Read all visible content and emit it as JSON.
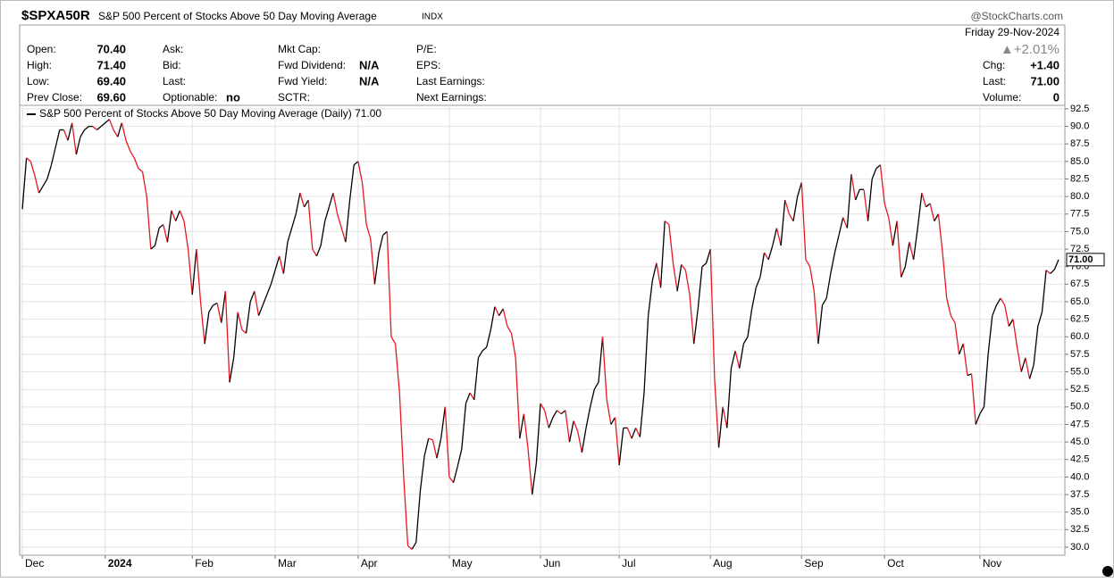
{
  "header": {
    "symbol": "$SPXA50R",
    "name": "S&P 500 Percent of Stocks Above 50 Day Moving Average",
    "exchange": "INDX",
    "brand": "@StockCharts.com",
    "date": "Friday  29-Nov-2024",
    "change_pct": "▲+2.01%"
  },
  "quote": {
    "columns": [
      [
        {
          "label": "Open:",
          "value": "70.40"
        },
        {
          "label": "High:",
          "value": "71.40"
        },
        {
          "label": "Low:",
          "value": "69.40"
        },
        {
          "label": "Prev Close:",
          "value": "69.60"
        }
      ],
      [
        {
          "label": "Ask:"
        },
        {
          "label": "Bid:"
        },
        {
          "label": "Last:"
        },
        {
          "label": "Optionable:",
          "value": "no"
        }
      ],
      [
        {
          "label": "Mkt Cap:"
        },
        {
          "label": "Fwd Dividend:",
          "value": "N/A"
        },
        {
          "label": "Fwd Yield:",
          "value": "N/A"
        },
        {
          "label": "SCTR:"
        }
      ],
      [
        {
          "label": "P/E:"
        },
        {
          "label": "EPS:"
        },
        {
          "label": "Last Earnings:"
        },
        {
          "label": "Next Earnings:"
        }
      ],
      [
        {
          "label": "Chg:",
          "value": "+1.40"
        },
        {
          "label": "Last:",
          "value": "71.00"
        },
        {
          "label": "Volume:",
          "value": "0"
        }
      ]
    ]
  },
  "chart_data": {
    "type": "line",
    "categories": [
      "Dec",
      null,
      null,
      null,
      null,
      null,
      null,
      null,
      null,
      null,
      null,
      null,
      null,
      null,
      null,
      null,
      null,
      null,
      null,
      null,
      "2024",
      null,
      null,
      null,
      null,
      null,
      null,
      null,
      null,
      null,
      null,
      null,
      null,
      null,
      null,
      null,
      null,
      null,
      null,
      null,
      null,
      "Feb",
      null,
      null,
      null,
      null,
      null,
      null,
      null,
      null,
      null,
      null,
      null,
      null,
      null,
      null,
      null,
      null,
      null,
      null,
      null,
      "Mar",
      null,
      null,
      null,
      null,
      null,
      null,
      null,
      null,
      null,
      null,
      null,
      null,
      null,
      null,
      null,
      null,
      null,
      null,
      null,
      "Apr",
      null,
      null,
      null,
      null,
      null,
      null,
      null,
      null,
      null,
      null,
      null,
      null,
      null,
      null,
      null,
      null,
      null,
      null,
      null,
      null,
      null,
      "May",
      null,
      null,
      null,
      null,
      null,
      null,
      null,
      null,
      null,
      null,
      null,
      null,
      null,
      null,
      null,
      null,
      null,
      null,
      null,
      null,
      null,
      "Jun",
      null,
      null,
      null,
      null,
      null,
      null,
      null,
      null,
      null,
      null,
      null,
      null,
      null,
      null,
      null,
      null,
      null,
      null,
      "Jul",
      null,
      null,
      null,
      null,
      null,
      null,
      null,
      null,
      null,
      null,
      null,
      null,
      null,
      null,
      null,
      null,
      null,
      null,
      null,
      null,
      null,
      "Aug",
      null,
      null,
      null,
      null,
      null,
      null,
      null,
      null,
      null,
      null,
      null,
      null,
      null,
      null,
      null,
      null,
      null,
      null,
      null,
      null,
      null,
      "Sep",
      null,
      null,
      null,
      null,
      null,
      null,
      null,
      null,
      null,
      null,
      null,
      null,
      null,
      null,
      null,
      null,
      null,
      null,
      null,
      "Oct",
      null,
      null,
      null,
      null,
      null,
      null,
      null,
      null,
      null,
      null,
      null,
      null,
      null,
      null,
      null,
      null,
      null,
      null,
      null,
      null,
      null,
      null,
      "Nov",
      null,
      null,
      null,
      null,
      null,
      null,
      null,
      null,
      null,
      null,
      null,
      null,
      null,
      null,
      null,
      null,
      null,
      null,
      null
    ],
    "series": [
      {
        "name": "S&P 500 Percent of Stocks Above 50 Day Moving Average (Daily) 71.00",
        "up_color": "#000000",
        "down_color": "#e8171f",
        "last_label": "71.00",
        "values": [
          78.2,
          85.5,
          85.0,
          83.0,
          80.5,
          81.5,
          82.5,
          84.5,
          87.0,
          89.5,
          89.5,
          88.0,
          90.5,
          86.0,
          88.5,
          89.5,
          90.0,
          90.0,
          89.5,
          90.0,
          90.5,
          91.0,
          89.5,
          88.5,
          90.5,
          88.0,
          86.5,
          85.5,
          84.0,
          83.5,
          80.0,
          72.5,
          73.0,
          75.5,
          76.0,
          73.5,
          78.0,
          76.5,
          78.0,
          76.5,
          72.5,
          66.0,
          72.5,
          65.0,
          59.0,
          63.5,
          64.5,
          64.8,
          62.0,
          66.5,
          53.5,
          57.0,
          63.5,
          61.0,
          60.5,
          65.0,
          66.5,
          63.0,
          64.5,
          66.0,
          67.5,
          69.5,
          71.5,
          69.0,
          73.5,
          75.5,
          77.5,
          80.5,
          78.5,
          79.5,
          72.5,
          71.5,
          73.0,
          76.5,
          78.5,
          80.5,
          77.5,
          75.5,
          73.5,
          79.5,
          84.5,
          85.0,
          82.0,
          76.0,
          74.0,
          67.5,
          72.0,
          74.5,
          75.0,
          60.0,
          59.0,
          52.0,
          40.0,
          30.2,
          29.7,
          30.7,
          38.0,
          43.0,
          45.5,
          45.3,
          42.7,
          45.5,
          50.0,
          40.0,
          39.2,
          41.5,
          44.0,
          50.5,
          52.0,
          51.0,
          57.0,
          58.0,
          58.5,
          61.0,
          64.3,
          63.0,
          64.0,
          61.5,
          60.5,
          57.0,
          45.5,
          49.0,
          44.0,
          37.5,
          42.0,
          50.5,
          49.5,
          47.0,
          48.5,
          49.5,
          49.0,
          49.5,
          45.0,
          48.0,
          46.5,
          43.5,
          47.0,
          50.0,
          52.5,
          53.5,
          60.0,
          51.0,
          47.5,
          48.5,
          41.7,
          47.0,
          47.0,
          45.5,
          47.0,
          45.7,
          52.0,
          63.0,
          68.0,
          70.5,
          67.0,
          76.5,
          76.0,
          70.5,
          66.5,
          70.3,
          69.5,
          66.0,
          59.0,
          64.0,
          70.0,
          70.5,
          72.5,
          54.0,
          44.2,
          50.0,
          47.0,
          55.5,
          58.0,
          55.5,
          59.0,
          60.0,
          64.0,
          67.0,
          68.5,
          72.0,
          71.0,
          73.0,
          75.5,
          73.0,
          79.5,
          77.5,
          76.5,
          80.0,
          82.0,
          71.0,
          70.0,
          66.5,
          59.0,
          64.5,
          65.5,
          69.0,
          72.0,
          74.5,
          77.0,
          75.5,
          83.2,
          79.5,
          81.0,
          81.0,
          76.5,
          82.5,
          84.0,
          84.5,
          79.0,
          77.0,
          73.0,
          76.5,
          68.5,
          70.0,
          73.5,
          71.0,
          75.5,
          80.5,
          78.5,
          79.0,
          76.5,
          77.5,
          72.0,
          65.5,
          63.0,
          62.0,
          57.5,
          59.0,
          54.5,
          54.7,
          47.5,
          49.0,
          50.0,
          57.5,
          63.0,
          64.5,
          65.5,
          64.5,
          61.5,
          62.5,
          58.5,
          55.0,
          57.0,
          54.0,
          56.0,
          61.5,
          63.5,
          69.5,
          69.0,
          69.6,
          71.0
        ]
      }
    ],
    "ylim": [
      28.85,
      93
    ],
    "yticks": [
      {
        "value": 30,
        "label": "30.0"
      },
      32.5,
      {
        "value": 35,
        "label": "35.0"
      },
      37.5,
      {
        "value": 40,
        "label": "40.0"
      },
      42.5,
      {
        "value": 45,
        "label": "45.0"
      },
      47.5,
      {
        "value": 50,
        "label": "50.0"
      },
      52.5,
      {
        "value": 55,
        "label": "55.0"
      },
      57.5,
      {
        "value": 60,
        "label": "60.0"
      },
      62.5,
      {
        "value": 65,
        "label": "65.0"
      },
      67.5,
      {
        "value": 70,
        "label": "70.0"
      },
      72.5,
      {
        "value": 75,
        "label": "75.0"
      },
      77.5,
      {
        "value": 80,
        "label": "80.0"
      },
      82.5,
      {
        "value": 85,
        "label": "85.0"
      },
      87.5,
      {
        "value": 90,
        "label": "90.0"
      },
      92.5
    ],
    "grid": true
  }
}
